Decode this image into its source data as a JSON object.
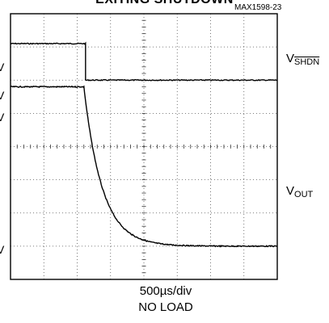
{
  "chart_data": {
    "type": "line",
    "title": "EXITING SHUTDOWN",
    "figure_id": "MAX1598-23",
    "x_divisions": 8,
    "y_divisions": 8,
    "x_scale": "500µs/div",
    "condition": "NO LOAD",
    "y_tick_labels": [
      "V",
      "V",
      "V",
      "V"
    ],
    "series": [
      {
        "name": "VSHDN",
        "label_main": "V",
        "label_sub": "SHDN",
        "units": "div",
        "points": [
          [
            0,
            7.1
          ],
          [
            2.25,
            7.1
          ],
          [
            2.25,
            6.0
          ],
          [
            8,
            6.0
          ]
        ]
      },
      {
        "name": "VOUT",
        "label_main": "V",
        "label_sub": "OUT",
        "units": "div",
        "initial_level": 5.8,
        "final_level": 1.0,
        "step_time_div": 2.2,
        "decay_tau_div": 0.55
      }
    ],
    "grid": true
  },
  "footer": {
    "line1": "500µs/div",
    "line2": "NO LOAD"
  }
}
